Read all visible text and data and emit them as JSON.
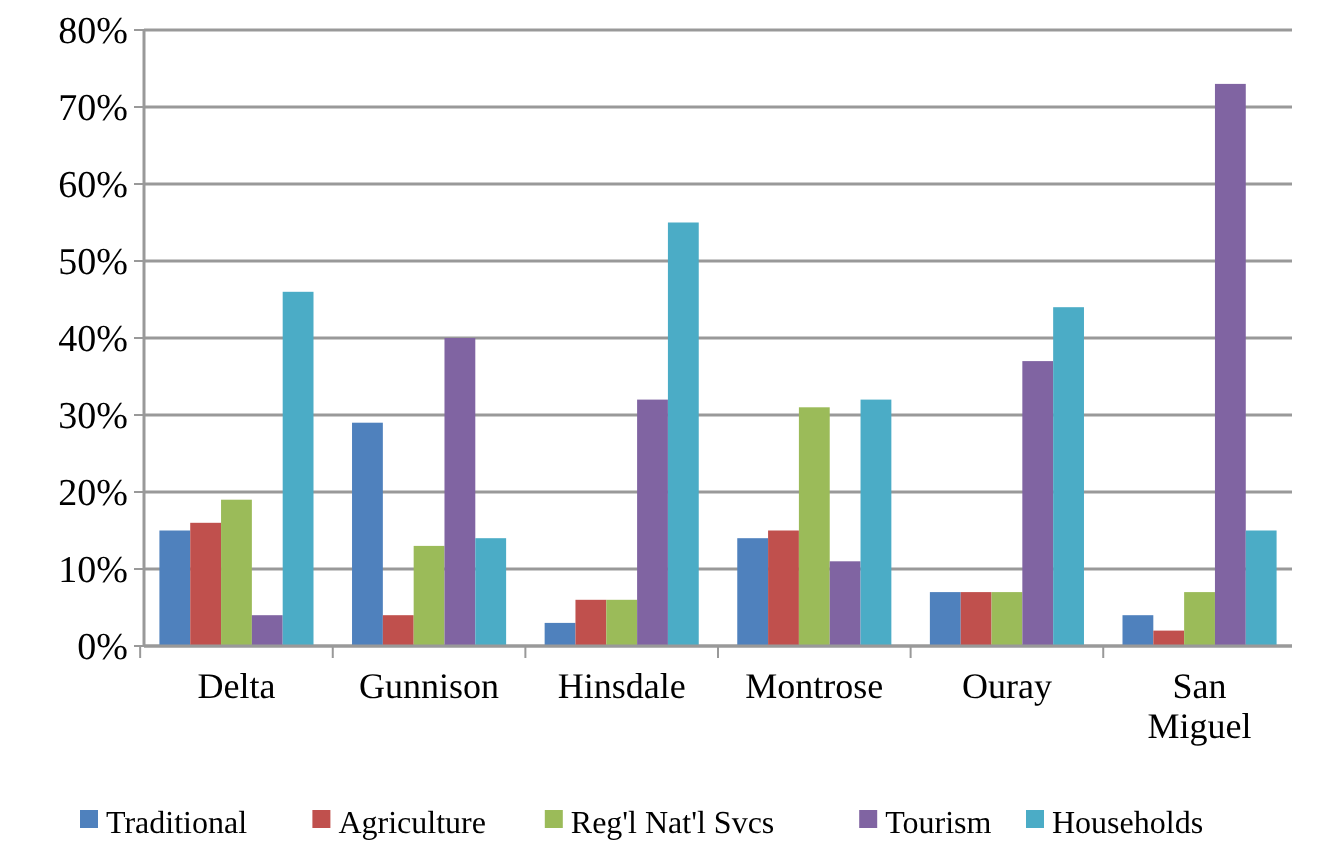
{
  "chart_data": {
    "type": "bar",
    "categories": [
      "Delta",
      "Gunnison",
      "Hinsdale",
      "Montrose",
      "Ouray",
      "San Miguel"
    ],
    "series": [
      {
        "name": "Traditional",
        "color": "#4f81bd",
        "values": [
          15,
          29,
          3,
          14,
          7,
          4
        ]
      },
      {
        "name": "Agriculture",
        "color": "#c0504d",
        "values": [
          16,
          4,
          6,
          15,
          7,
          2
        ]
      },
      {
        "name": "Reg'l Nat'l Svcs",
        "color": "#9bbb59",
        "values": [
          19,
          13,
          6,
          31,
          7,
          7
        ]
      },
      {
        "name": "Tourism",
        "color": "#8064a2",
        "values": [
          4,
          40,
          32,
          11,
          37,
          73
        ]
      },
      {
        "name": "Households",
        "color": "#4bacc6",
        "values": [
          46,
          14,
          55,
          32,
          44,
          15
        ]
      }
    ],
    "ylim": [
      0,
      80
    ],
    "yticks": [
      {
        "value": 0,
        "label": "0%"
      },
      {
        "value": 10,
        "label": "10%"
      },
      {
        "value": 20,
        "label": "20%"
      },
      {
        "value": 30,
        "label": "30%"
      },
      {
        "value": 40,
        "label": "40%"
      },
      {
        "value": 50,
        "label": "50%"
      },
      {
        "value": 60,
        "label": "60%"
      },
      {
        "value": 70,
        "label": "70%"
      },
      {
        "value": 80,
        "label": "80%"
      }
    ],
    "grid": "y",
    "legend": "bottom"
  }
}
